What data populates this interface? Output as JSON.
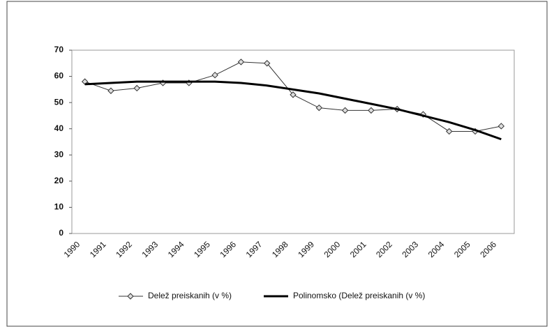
{
  "chart_data": {
    "type": "line",
    "categories": [
      "1990",
      "1991",
      "1992",
      "1993",
      "1994",
      "1995",
      "1996",
      "1997",
      "1998",
      "1999",
      "2000",
      "2001",
      "2002",
      "2003",
      "2004",
      "2005",
      "2006"
    ],
    "series": [
      {
        "name": "Delež preiskanih (v %)",
        "color": "#333333",
        "marker": "diamond",
        "values": [
          58,
          54.5,
          55.5,
          57.5,
          57.5,
          60.5,
          65.5,
          65,
          53,
          48,
          47,
          47,
          47.5,
          45.5,
          39,
          39,
          41
        ]
      },
      {
        "name": "Polinomsko (Delež preiskanih (v %)",
        "color": "#000000",
        "values": [
          57,
          57.5,
          58,
          58,
          58,
          58,
          57.5,
          56.5,
          55,
          53.5,
          51.5,
          49.5,
          47.5,
          45,
          42.5,
          39.5,
          36
        ]
      }
    ],
    "ylim": [
      0,
      70
    ],
    "yticks": [
      0,
      10,
      20,
      30,
      40,
      50,
      60,
      70
    ],
    "grid": false,
    "legend": "bottom"
  }
}
